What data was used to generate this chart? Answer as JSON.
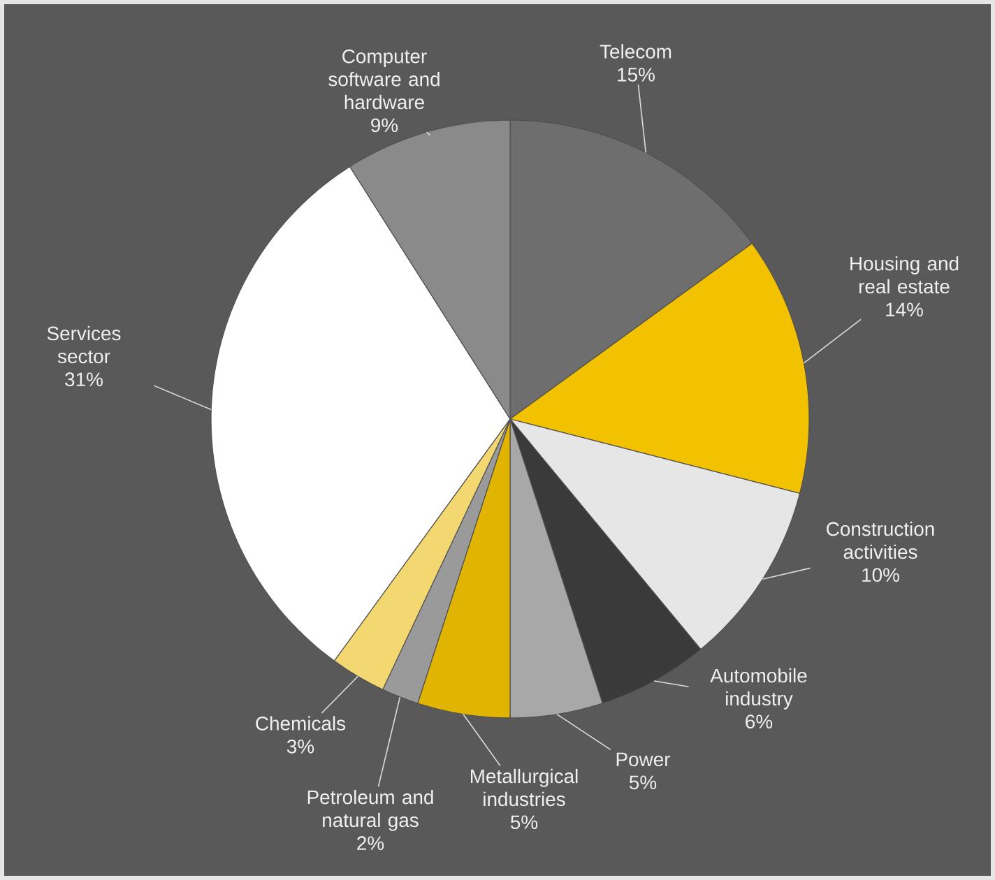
{
  "chart_data": {
    "type": "pie",
    "categories": [
      "Telecom",
      "Housing and real estate",
      "Construction activities",
      "Automobile industry",
      "Power",
      "Metallurgical industries",
      "Petroleum and natural gas",
      "Chemicals",
      "Services sector",
      "Computer software and hardware"
    ],
    "values": [
      15,
      14,
      10,
      6,
      5,
      5,
      2,
      3,
      31,
      9
    ],
    "value_labels": [
      "15%",
      "14%",
      "10%",
      "6%",
      "5%",
      "5%",
      "2%",
      "3%",
      "31%",
      "9%"
    ],
    "colors": [
      "#6e6e6e",
      "#f2c200",
      "#e6e6e6",
      "#3a3a3a",
      "#a8a8a8",
      "#e0b400",
      "#9a9a9a",
      "#f3d770",
      "#ffffff",
      "#8a8a8a"
    ]
  }
}
